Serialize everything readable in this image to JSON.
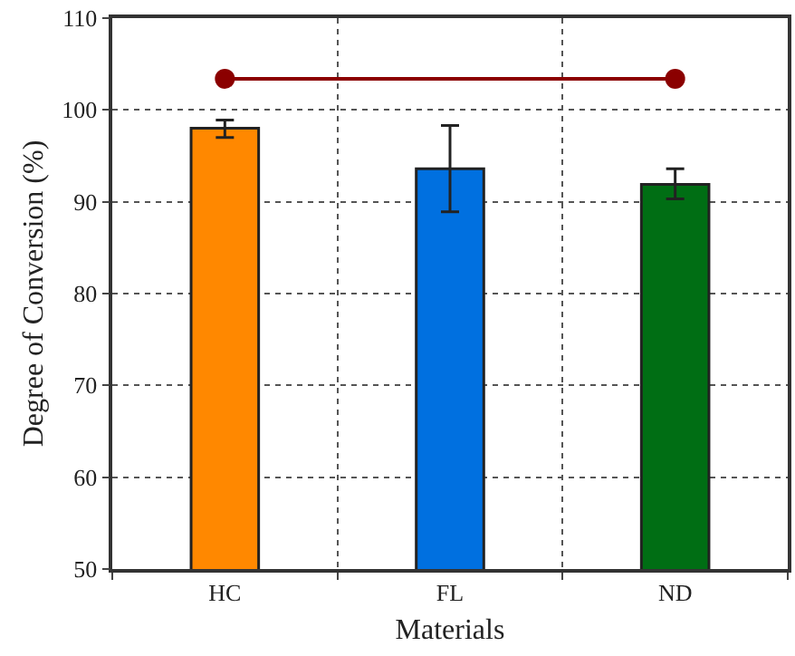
{
  "chart_data": {
    "type": "bar",
    "xlabel": "Materials",
    "ylabel": "Degree of Conversion (%)",
    "categories": [
      "HC",
      "FL",
      "ND"
    ],
    "series": [
      {
        "colors": [
          "#ff8800",
          "#0070e0",
          "#006e14"
        ],
        "values": [
          98.0,
          93.6,
          91.9
        ],
        "errors": [
          [
            97.0,
            98.9
          ],
          [
            88.9,
            98.3
          ],
          [
            90.3,
            93.6
          ]
        ]
      },
      {
        "type": "line",
        "color": "#8b0000",
        "x": [
          "HC",
          "ND"
        ],
        "values": [
          103.4,
          103.4
        ],
        "marker": "circle"
      }
    ],
    "ylim": [
      50,
      110
    ],
    "yticks": [
      50,
      60,
      70,
      80,
      90,
      100,
      110
    ],
    "grid": true,
    "legend": false
  }
}
